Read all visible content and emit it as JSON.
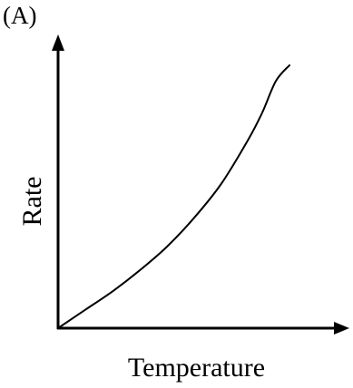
{
  "chart_data": {
    "type": "line",
    "panel_label": "(A)",
    "title": "",
    "xlabel": "Temperature",
    "ylabel": "Rate",
    "xlim": [
      0,
      1
    ],
    "ylim": [
      0,
      1
    ],
    "grid": false,
    "legend": "none",
    "ticks": "none",
    "series": [
      {
        "color": "#000000",
        "x": [
          0,
          0.1,
          0.2,
          0.3,
          0.4,
          0.5,
          0.6,
          0.7,
          0.75,
          0.8,
          0.85
        ],
        "y": [
          0,
          0.07,
          0.14,
          0.22,
          0.31,
          0.42,
          0.55,
          0.72,
          0.82,
          0.94,
          1.0
        ]
      }
    ]
  }
}
